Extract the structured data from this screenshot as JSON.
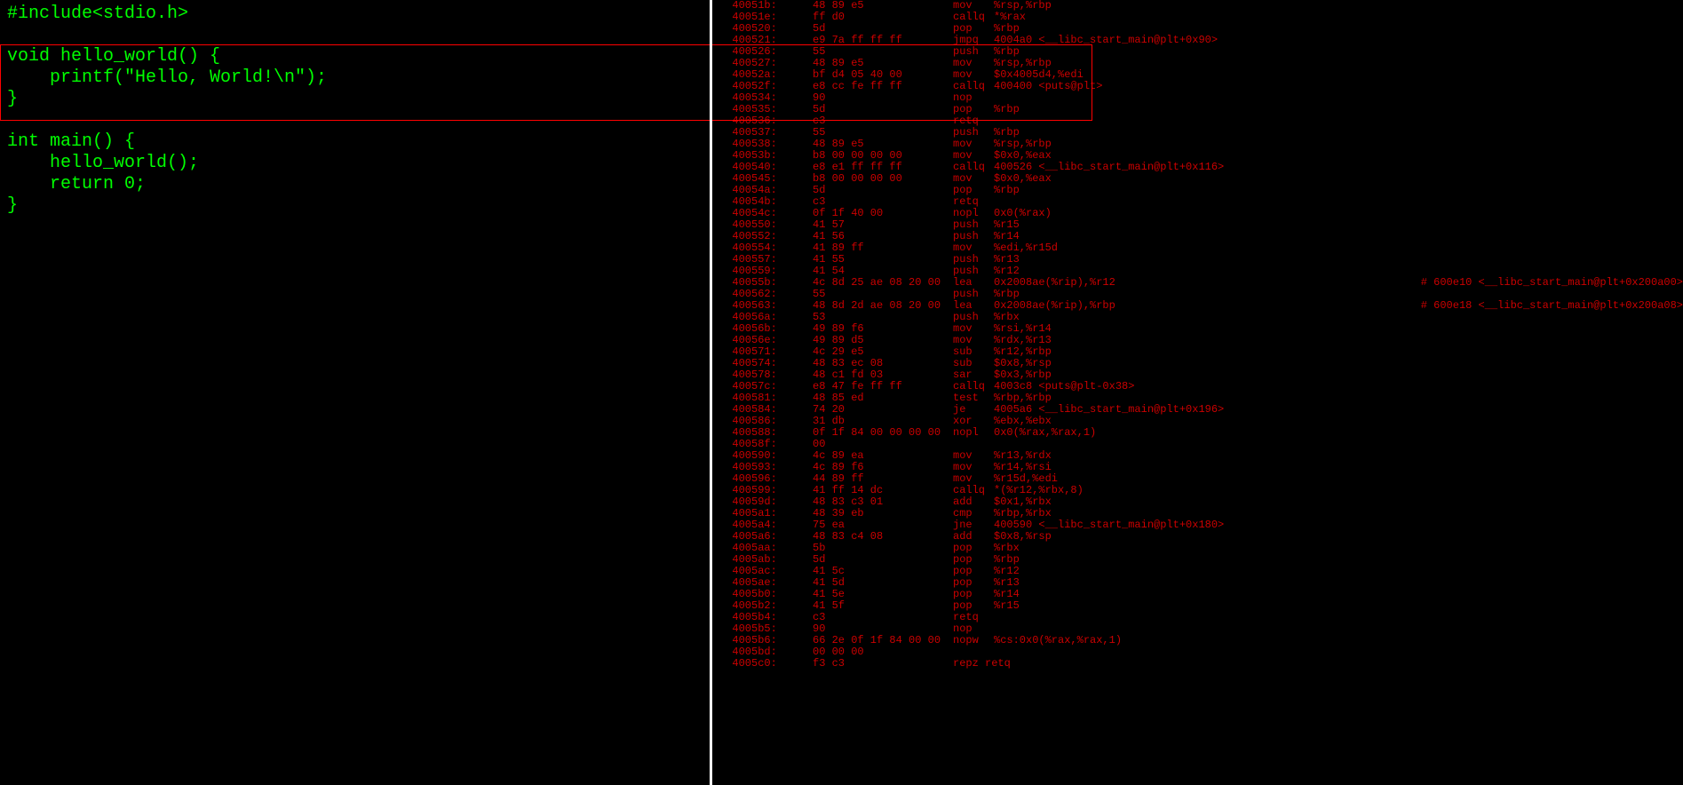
{
  "colors": {
    "background": "#000000",
    "source_text": "#00ff00",
    "asm_text": "#cc0000",
    "divider": "#ffffff",
    "highlight_border": "#ff0000"
  },
  "source": {
    "lines": [
      "#include<stdio.h>",
      "",
      "void hello_world() {",
      "    printf(\"Hello, World!\\n\");",
      "}",
      "",
      "int main() {",
      "    hello_world();",
      "    return 0;",
      "}"
    ],
    "highlight_start_line": 2,
    "highlight_end_line": 4
  },
  "asm": {
    "highlight_start_idx": 4,
    "highlight_end_idx": 10,
    "lines": [
      {
        "addr": "40051b:",
        "bytes": "48 89 e5",
        "mnem": "mov",
        "ops": "%rsp,%rbp"
      },
      {
        "addr": "40051e:",
        "bytes": "ff d0",
        "mnem": "callq",
        "ops": "*%rax"
      },
      {
        "addr": "400520:",
        "bytes": "5d",
        "mnem": "pop",
        "ops": "%rbp"
      },
      {
        "addr": "400521:",
        "bytes": "e9 7a ff ff ff",
        "mnem": "jmpq",
        "ops": "4004a0 <__libc_start_main@plt+0x90>"
      },
      {
        "addr": "400526:",
        "bytes": "55",
        "mnem": "push",
        "ops": "%rbp"
      },
      {
        "addr": "400527:",
        "bytes": "48 89 e5",
        "mnem": "mov",
        "ops": "%rsp,%rbp"
      },
      {
        "addr": "40052a:",
        "bytes": "bf d4 05 40 00",
        "mnem": "mov",
        "ops": "$0x4005d4,%edi"
      },
      {
        "addr": "40052f:",
        "bytes": "e8 cc fe ff ff",
        "mnem": "callq",
        "ops": "400400 <puts@plt>"
      },
      {
        "addr": "400534:",
        "bytes": "90",
        "mnem": "nop",
        "ops": ""
      },
      {
        "addr": "400535:",
        "bytes": "5d",
        "mnem": "pop",
        "ops": "%rbp"
      },
      {
        "addr": "400536:",
        "bytes": "c3",
        "mnem": "retq",
        "ops": ""
      },
      {
        "addr": "400537:",
        "bytes": "55",
        "mnem": "push",
        "ops": "%rbp"
      },
      {
        "addr": "400538:",
        "bytes": "48 89 e5",
        "mnem": "mov",
        "ops": "%rsp,%rbp"
      },
      {
        "addr": "40053b:",
        "bytes": "b8 00 00 00 00",
        "mnem": "mov",
        "ops": "$0x0,%eax"
      },
      {
        "addr": "400540:",
        "bytes": "e8 e1 ff ff ff",
        "mnem": "callq",
        "ops": "400526 <__libc_start_main@plt+0x116>"
      },
      {
        "addr": "400545:",
        "bytes": "b8 00 00 00 00",
        "mnem": "mov",
        "ops": "$0x0,%eax"
      },
      {
        "addr": "40054a:",
        "bytes": "5d",
        "mnem": "pop",
        "ops": "%rbp"
      },
      {
        "addr": "40054b:",
        "bytes": "c3",
        "mnem": "retq",
        "ops": ""
      },
      {
        "addr": "40054c:",
        "bytes": "0f 1f 40 00",
        "mnem": "nopl",
        "ops": "0x0(%rax)"
      },
      {
        "addr": "400550:",
        "bytes": "41 57",
        "mnem": "push",
        "ops": "%r15"
      },
      {
        "addr": "400552:",
        "bytes": "41 56",
        "mnem": "push",
        "ops": "%r14"
      },
      {
        "addr": "400554:",
        "bytes": "41 89 ff",
        "mnem": "mov",
        "ops": "%edi,%r15d"
      },
      {
        "addr": "400557:",
        "bytes": "41 55",
        "mnem": "push",
        "ops": "%r13"
      },
      {
        "addr": "400559:",
        "bytes": "41 54",
        "mnem": "push",
        "ops": "%r12"
      },
      {
        "addr": "40055b:",
        "bytes": "4c 8d 25 ae 08 20 00",
        "mnem": "lea",
        "ops": "0x2008ae(%rip),%r12",
        "comment": "# 600e10 <__libc_start_main@plt+0x200a00>"
      },
      {
        "addr": "400562:",
        "bytes": "55",
        "mnem": "push",
        "ops": "%rbp"
      },
      {
        "addr": "400563:",
        "bytes": "48 8d 2d ae 08 20 00",
        "mnem": "lea",
        "ops": "0x2008ae(%rip),%rbp",
        "comment": "# 600e18 <__libc_start_main@plt+0x200a08>"
      },
      {
        "addr": "40056a:",
        "bytes": "53",
        "mnem": "push",
        "ops": "%rbx"
      },
      {
        "addr": "40056b:",
        "bytes": "49 89 f6",
        "mnem": "mov",
        "ops": "%rsi,%r14"
      },
      {
        "addr": "40056e:",
        "bytes": "49 89 d5",
        "mnem": "mov",
        "ops": "%rdx,%r13"
      },
      {
        "addr": "400571:",
        "bytes": "4c 29 e5",
        "mnem": "sub",
        "ops": "%r12,%rbp"
      },
      {
        "addr": "400574:",
        "bytes": "48 83 ec 08",
        "mnem": "sub",
        "ops": "$0x8,%rsp"
      },
      {
        "addr": "400578:",
        "bytes": "48 c1 fd 03",
        "mnem": "sar",
        "ops": "$0x3,%rbp"
      },
      {
        "addr": "40057c:",
        "bytes": "e8 47 fe ff ff",
        "mnem": "callq",
        "ops": "4003c8 <puts@plt-0x38>"
      },
      {
        "addr": "400581:",
        "bytes": "48 85 ed",
        "mnem": "test",
        "ops": "%rbp,%rbp"
      },
      {
        "addr": "400584:",
        "bytes": "74 20",
        "mnem": "je",
        "ops": "4005a6 <__libc_start_main@plt+0x196>"
      },
      {
        "addr": "400586:",
        "bytes": "31 db",
        "mnem": "xor",
        "ops": "%ebx,%ebx"
      },
      {
        "addr": "400588:",
        "bytes": "0f 1f 84 00 00 00 00",
        "mnem": "nopl",
        "ops": "0x0(%rax,%rax,1)"
      },
      {
        "addr": "40058f:",
        "bytes": "00",
        "mnem": "",
        "ops": ""
      },
      {
        "addr": "400590:",
        "bytes": "4c 89 ea",
        "mnem": "mov",
        "ops": "%r13,%rdx"
      },
      {
        "addr": "400593:",
        "bytes": "4c 89 f6",
        "mnem": "mov",
        "ops": "%r14,%rsi"
      },
      {
        "addr": "400596:",
        "bytes": "44 89 ff",
        "mnem": "mov",
        "ops": "%r15d,%edi"
      },
      {
        "addr": "400599:",
        "bytes": "41 ff 14 dc",
        "mnem": "callq",
        "ops": "*(%r12,%rbx,8)"
      },
      {
        "addr": "40059d:",
        "bytes": "48 83 c3 01",
        "mnem": "add",
        "ops": "$0x1,%rbx"
      },
      {
        "addr": "4005a1:",
        "bytes": "48 39 eb",
        "mnem": "cmp",
        "ops": "%rbp,%rbx"
      },
      {
        "addr": "4005a4:",
        "bytes": "75 ea",
        "mnem": "jne",
        "ops": "400590 <__libc_start_main@plt+0x180>"
      },
      {
        "addr": "4005a6:",
        "bytes": "48 83 c4 08",
        "mnem": "add",
        "ops": "$0x8,%rsp"
      },
      {
        "addr": "4005aa:",
        "bytes": "5b",
        "mnem": "pop",
        "ops": "%rbx"
      },
      {
        "addr": "4005ab:",
        "bytes": "5d",
        "mnem": "pop",
        "ops": "%rbp"
      },
      {
        "addr": "4005ac:",
        "bytes": "41 5c",
        "mnem": "pop",
        "ops": "%r12"
      },
      {
        "addr": "4005ae:",
        "bytes": "41 5d",
        "mnem": "pop",
        "ops": "%r13"
      },
      {
        "addr": "4005b0:",
        "bytes": "41 5e",
        "mnem": "pop",
        "ops": "%r14"
      },
      {
        "addr": "4005b2:",
        "bytes": "41 5f",
        "mnem": "pop",
        "ops": "%r15"
      },
      {
        "addr": "4005b4:",
        "bytes": "c3",
        "mnem": "retq",
        "ops": ""
      },
      {
        "addr": "4005b5:",
        "bytes": "90",
        "mnem": "nop",
        "ops": ""
      },
      {
        "addr": "4005b6:",
        "bytes": "66 2e 0f 1f 84 00 00",
        "mnem": "nopw",
        "ops": "%cs:0x0(%rax,%rax,1)"
      },
      {
        "addr": "4005bd:",
        "bytes": "00 00 00",
        "mnem": "",
        "ops": ""
      },
      {
        "addr": "4005c0:",
        "bytes": "f3 c3",
        "mnem": "repz retq",
        "ops": ""
      }
    ]
  }
}
